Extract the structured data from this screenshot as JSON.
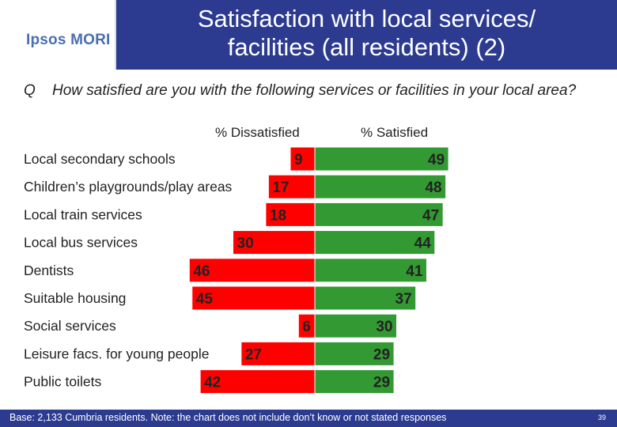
{
  "logo": {
    "text": "Ipsos MORI"
  },
  "header": {
    "title_line1": "Satisfaction with local services/",
    "title_line2": "facilities (all residents) (2)"
  },
  "question": {
    "marker": "Q",
    "text": "How satisfied are you with the following services or facilities in your local area?"
  },
  "columns": {
    "dissatisfied": "% Dissatisfied",
    "satisfied": "% Satisfied"
  },
  "colors": {
    "dissatisfied": "#ff0000",
    "satisfied": "#339933",
    "header": "#2c3b90"
  },
  "chart_data": {
    "type": "bar",
    "categories": [
      "Local secondary schools",
      "Children’s playgrounds/play areas",
      "Local train services",
      "Local bus services",
      "Dentists",
      "Suitable housing",
      "Social services",
      "Leisure facs. for young people",
      "Public toilets"
    ],
    "series": [
      {
        "name": "% Dissatisfied",
        "values": [
          9,
          17,
          18,
          30,
          46,
          45,
          6,
          27,
          42
        ]
      },
      {
        "name": "% Satisfied",
        "values": [
          49,
          48,
          47,
          44,
          41,
          37,
          30,
          29,
          29
        ]
      }
    ]
  },
  "footer": {
    "note": "Base: 2,133 Cumbria residents. Note: the chart does not include don’t know or not stated responses",
    "page": "39"
  }
}
